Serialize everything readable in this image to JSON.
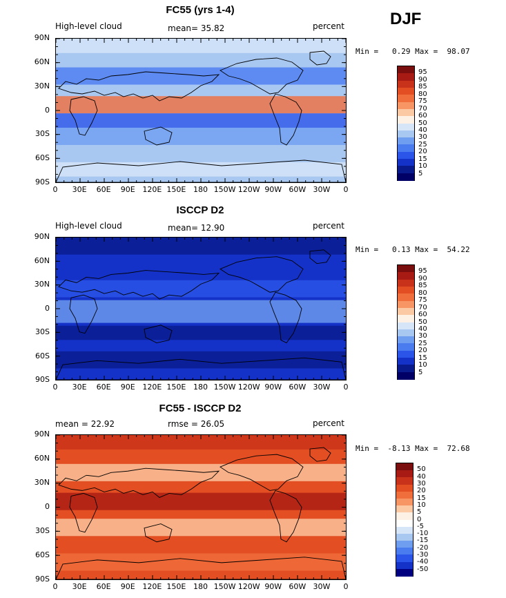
{
  "season": "DJF",
  "panels": [
    {
      "title": "FC55 (yrs 1-4)",
      "left_label": "High-level cloud",
      "center_label": "mean=  35.82",
      "unit": "percent",
      "minmax": "Min =   0.29 Max =  98.07",
      "colorbar_labels": [
        "95",
        "90",
        "85",
        "80",
        "75",
        "70",
        "60",
        "50",
        "40",
        "30",
        "25",
        "20",
        "15",
        "10",
        "5"
      ],
      "scheme": "abs",
      "field_mean": 35.82
    },
    {
      "title": "ISCCP D2",
      "left_label": "High-level cloud",
      "center_label": "mean=  12.90",
      "unit": "percent",
      "minmax": "Min =   0.13 Max =  54.22",
      "colorbar_labels": [
        "95",
        "90",
        "85",
        "80",
        "75",
        "70",
        "60",
        "50",
        "40",
        "30",
        "25",
        "20",
        "15",
        "10",
        "5"
      ],
      "scheme": "abs",
      "field_mean": 12.9
    },
    {
      "title": "FC55 - ISCCP D2",
      "left_label": "mean =  22.92",
      "center_label": "rmse =  26.05",
      "unit": "percent",
      "minmax": "Min =  -8.13 Max =  72.68",
      "colorbar_labels": [
        "50",
        "40",
        "30",
        "20",
        "15",
        "10",
        "5",
        "0",
        "-5",
        "-10",
        "-15",
        "-20",
        "-30",
        "-40",
        "-50"
      ],
      "scheme": "diff",
      "field_mean": 22.92
    }
  ],
  "lat_labels": [
    "90N",
    "60N",
    "30N",
    "0",
    "30S",
    "60S",
    "90S"
  ],
  "lon_labels": [
    "0",
    "30E",
    "60E",
    "90E",
    "120E",
    "150E",
    "180",
    "150W",
    "120W",
    "90W",
    "60W",
    "30W",
    "0"
  ],
  "colors": {
    "abs": [
      "#7a0d0d",
      "#a81b14",
      "#c9321a",
      "#e34e22",
      "#f06e3c",
      "#f79565",
      "#fbc9a3",
      "#fdf0e4",
      "#d6e6f8",
      "#a8c8f2",
      "#6f9ef0",
      "#4a7cf0",
      "#2a55e8",
      "#1532c8",
      "#081a8c",
      "#000066"
    ],
    "diff": [
      "#7a0d0d",
      "#a81b14",
      "#c9321a",
      "#e34e22",
      "#f06e3c",
      "#f79565",
      "#fbc9a3",
      "#fdf0e4",
      "#ffffff",
      "#d6e6f8",
      "#a8c8f2",
      "#6f9ef0",
      "#4a7cf0",
      "#2a55e8",
      "#1532c8",
      "#000080"
    ]
  }
}
